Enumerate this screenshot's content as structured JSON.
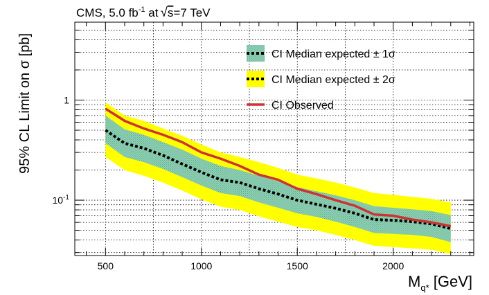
{
  "chart_data": {
    "type": "line",
    "title_parts": {
      "prefix": "CMS, 5.0 fb",
      "exp": "-1",
      "mid": " at",
      "sqrt": "√",
      "var": "s",
      "suffix": "=7 TeV"
    },
    "xlabel_parts": {
      "main": "M",
      "sub": "q*",
      "unit": " [GeV]"
    },
    "ylabel": "95% CL Limit on σ [pb]",
    "xlim": [
      340,
      2420
    ],
    "ylim": [
      0.028,
      6.0
    ],
    "yscale": "log",
    "grid": true,
    "x_ticks": [
      500,
      1000,
      1500,
      2000
    ],
    "x_tick_labels": [
      "500",
      "1000",
      "1500",
      "2000"
    ],
    "y_ticks": [
      0.1,
      1
    ],
    "y_tick_labels": [
      {
        "base": "10",
        "exp": "-1"
      },
      {
        "base": "1",
        "exp": ""
      }
    ],
    "legend": [
      {
        "label": "CI Median expected ± 1σ",
        "style": "band1"
      },
      {
        "label": "CI Median expected ± 2σ",
        "style": "band2"
      },
      {
        "label": "CI Observed",
        "style": "observed"
      }
    ],
    "legend_position": "top-right",
    "colors": {
      "band1": "#8fcfb4",
      "band2": "#ffff00",
      "observed": "#cc3333",
      "expected": "#000000",
      "grid": "#000000"
    },
    "x": [
      500,
      600,
      700,
      800,
      900,
      1000,
      1100,
      1200,
      1300,
      1400,
      1500,
      1600,
      1700,
      1800,
      1900,
      2000,
      2100,
      2200,
      2300
    ],
    "series": [
      {
        "name": "CI Observed",
        "values": [
          0.82,
          0.62,
          0.52,
          0.45,
          0.38,
          0.3,
          0.26,
          0.22,
          0.18,
          0.16,
          0.13,
          0.115,
          0.1,
          0.088,
          0.072,
          0.07,
          0.064,
          0.06,
          0.055
        ]
      },
      {
        "name": "CI Median expected",
        "values": [
          0.5,
          0.37,
          0.33,
          0.28,
          0.23,
          0.19,
          0.16,
          0.15,
          0.13,
          0.115,
          0.1,
          0.091,
          0.083,
          0.074,
          0.064,
          0.063,
          0.061,
          0.058,
          0.052
        ]
      },
      {
        "name": "+1σ",
        "values": [
          0.7,
          0.51,
          0.45,
          0.38,
          0.32,
          0.26,
          0.22,
          0.2,
          0.175,
          0.155,
          0.135,
          0.123,
          0.112,
          0.1,
          0.087,
          0.084,
          0.081,
          0.078,
          0.071
        ]
      },
      {
        "name": "-1σ",
        "values": [
          0.37,
          0.27,
          0.24,
          0.205,
          0.17,
          0.14,
          0.118,
          0.11,
          0.095,
          0.084,
          0.074,
          0.068,
          0.061,
          0.054,
          0.047,
          0.046,
          0.045,
          0.043,
          0.038
        ]
      },
      {
        "name": "+2σ",
        "values": [
          0.95,
          0.7,
          0.62,
          0.52,
          0.44,
          0.36,
          0.3,
          0.27,
          0.24,
          0.21,
          0.18,
          0.165,
          0.15,
          0.134,
          0.118,
          0.113,
          0.108,
          0.103,
          0.095
        ]
      },
      {
        "name": "-2σ",
        "values": [
          0.27,
          0.2,
          0.175,
          0.15,
          0.125,
          0.102,
          0.086,
          0.08,
          0.069,
          0.061,
          0.054,
          0.05,
          0.045,
          0.04,
          0.035,
          0.034,
          0.033,
          0.032,
          0.029
        ]
      }
    ]
  }
}
